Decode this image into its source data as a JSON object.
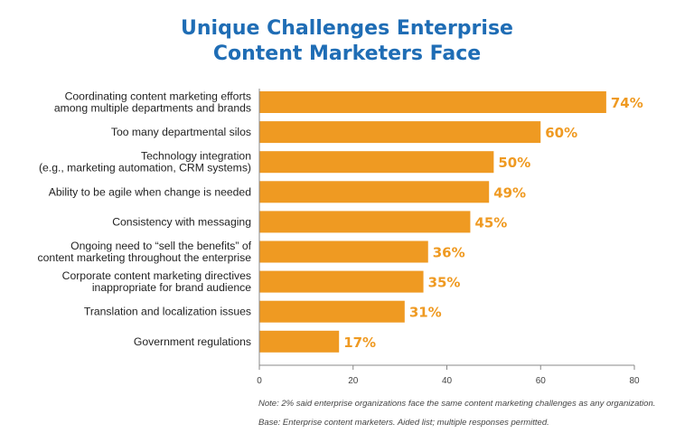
{
  "chart_data": {
    "type": "bar",
    "orientation": "horizontal",
    "title_lines": [
      "Unique Challenges Enterprise",
      "Content Marketers Face"
    ],
    "categories": [
      [
        "Coordinating content marketing efforts",
        "among multiple departments and brands"
      ],
      [
        "Too many departmental silos"
      ],
      [
        "Technology integration",
        "(e.g., marketing automation, CRM systems)"
      ],
      [
        "Ability to be agile when change is needed"
      ],
      [
        "Consistency with messaging"
      ],
      [
        "Ongoing need to “sell the benefits” of",
        "content marketing throughout the enterprise"
      ],
      [
        "Corporate content marketing directives",
        "inappropriate for brand audience"
      ],
      [
        "Translation and localization issues"
      ],
      [
        "Government regulations"
      ]
    ],
    "values": [
      74,
      60,
      50,
      49,
      45,
      36,
      35,
      31,
      17
    ],
    "value_labels": [
      "74%",
      "60%",
      "50%",
      "49%",
      "45%",
      "36%",
      "35%",
      "31%",
      "17%"
    ],
    "xlim": [
      0,
      80
    ],
    "xticks": [
      0,
      20,
      40,
      60,
      80
    ],
    "bar_color": "#ef9a22",
    "label_color": "#ef9a22",
    "title_color": "#1f6db5",
    "grid": false,
    "notes": [
      "Note: 2% said enterprise organizations face the same content marketing challenges as any organization.",
      "Base: Enterprise content marketers. Aided list; multiple responses permitted."
    ]
  }
}
